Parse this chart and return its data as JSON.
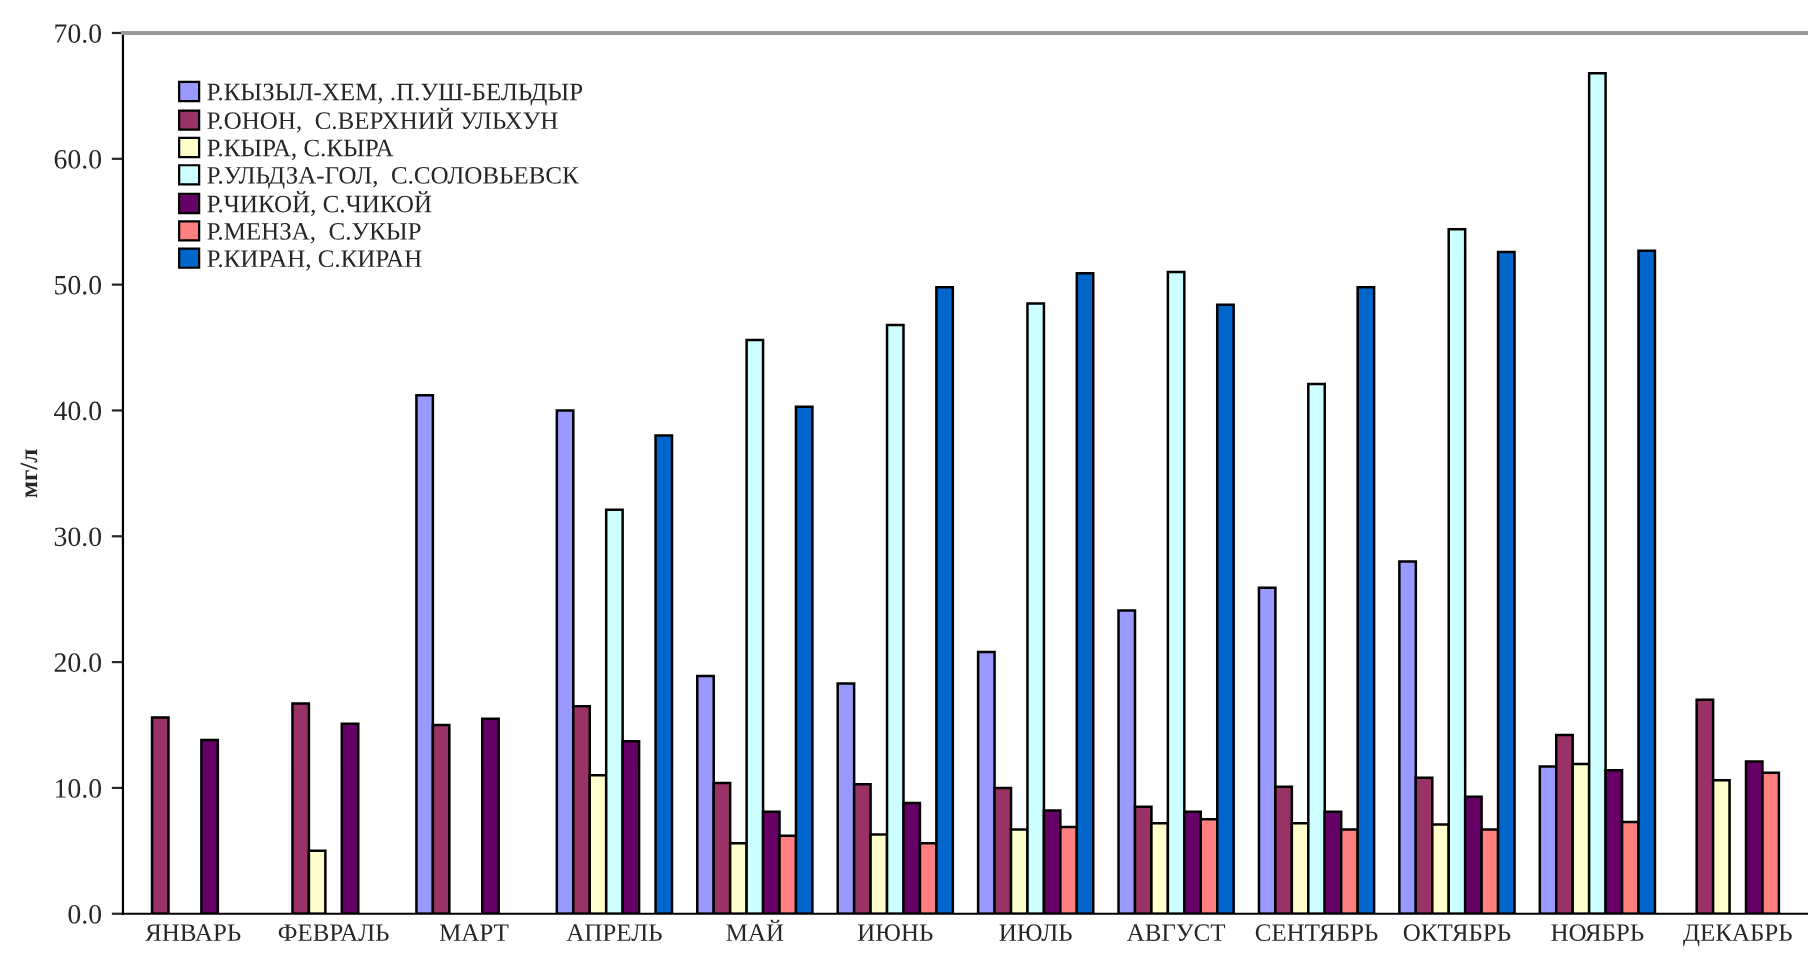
{
  "chart_data": {
    "type": "bar",
    "ylabel": "мг/л",
    "categories": [
      "ЯНВАРЬ",
      "ФЕВРАЛЬ",
      "МАРТ",
      "АПРЕЛЬ",
      "МАЙ",
      "ИЮНЬ",
      "ИЮЛЬ",
      "АВГУСТ",
      "СЕНТЯБРЬ",
      "ОКТЯБРЬ",
      "НОЯБРЬ",
      "ДЕКАБРЬ"
    ],
    "series": [
      {
        "name": "Р.КЫЗЫЛ-ХЕМ, .П.УШ-БЕЛЬДЫР",
        "color": "#9999ff",
        "values": [
          null,
          null,
          41.2,
          40.0,
          18.9,
          18.3,
          20.8,
          24.1,
          25.9,
          28.0,
          11.7,
          null
        ]
      },
      {
        "name": "Р.ОНОН,  С.ВЕРХНИЙ УЛЬХУН",
        "color": "#993366",
        "values": [
          15.6,
          16.7,
          15.0,
          16.5,
          10.4,
          10.3,
          10.0,
          8.5,
          10.1,
          10.8,
          14.2,
          17.0
        ]
      },
      {
        "name": "Р.КЫРА, С.КЫРА",
        "color": "#ffffcc",
        "values": [
          null,
          5.0,
          null,
          11.0,
          5.6,
          6.3,
          6.7,
          7.2,
          7.2,
          7.1,
          11.9,
          10.6
        ]
      },
      {
        "name": "Р.УЛЬДЗА-ГОЛ,  С.СОЛОВЬЕВСК",
        "color": "#ccffff",
        "values": [
          null,
          null,
          null,
          32.1,
          45.6,
          46.8,
          48.5,
          51.0,
          42.1,
          54.4,
          66.8,
          null
        ]
      },
      {
        "name": "Р.ЧИКОЙ, С.ЧИКОЙ",
        "color": "#660066",
        "values": [
          13.8,
          15.1,
          15.5,
          13.7,
          8.1,
          8.8,
          8.2,
          8.1,
          8.1,
          9.3,
          11.4,
          12.1
        ]
      },
      {
        "name": "Р.МЕНЗА,  С.УКЫР",
        "color": "#ff8080",
        "values": [
          null,
          null,
          null,
          null,
          6.2,
          5.6,
          6.9,
          7.5,
          6.7,
          6.7,
          7.3,
          11.2
        ]
      },
      {
        "name": "Р.КИРАН, С.КИРАН",
        "color": "#0066cc",
        "values": [
          null,
          null,
          null,
          38.0,
          40.3,
          49.8,
          50.9,
          48.4,
          49.8,
          52.6,
          52.7,
          null
        ]
      }
    ],
    "ylim": [
      0,
      70
    ],
    "yticks": [
      {
        "value": 0,
        "label": "0.0"
      },
      {
        "value": 10,
        "label": "10.0"
      },
      {
        "value": 20,
        "label": "20.0"
      },
      {
        "value": 30,
        "label": "30.0"
      },
      {
        "value": 40,
        "label": "40.0"
      },
      {
        "value": 50,
        "label": "50.0"
      },
      {
        "value": 60,
        "label": "60.0"
      },
      {
        "value": 70,
        "label": "70.0"
      }
    ],
    "grid": false,
    "legend": "top left"
  }
}
